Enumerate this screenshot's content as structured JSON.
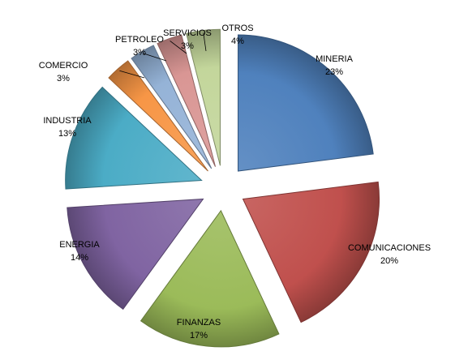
{
  "chart_data": {
    "type": "pie",
    "categories": [
      "MINERIA",
      "COMUNICACIONES",
      "FINANZAS",
      "ENERGIA",
      "INDUSTRIA",
      "COMERCIO",
      "PETROLEO",
      "SERVICIOS",
      "OTROS"
    ],
    "values": [
      23,
      20,
      17,
      14,
      13,
      3,
      3,
      3,
      4
    ],
    "value_labels": [
      "23%",
      "20%",
      "17%",
      "14%",
      "13%",
      "3%",
      "3%",
      "3%",
      "4%"
    ],
    "colors": [
      "#4F81BD",
      "#C0504D",
      "#9BBB59",
      "#8064A2",
      "#4BACC6",
      "#F79646",
      "#95B3D7",
      "#D99694",
      "#C3D69B"
    ],
    "exploded": true,
    "style": "3d-shaded",
    "legend": "none",
    "title": ""
  }
}
